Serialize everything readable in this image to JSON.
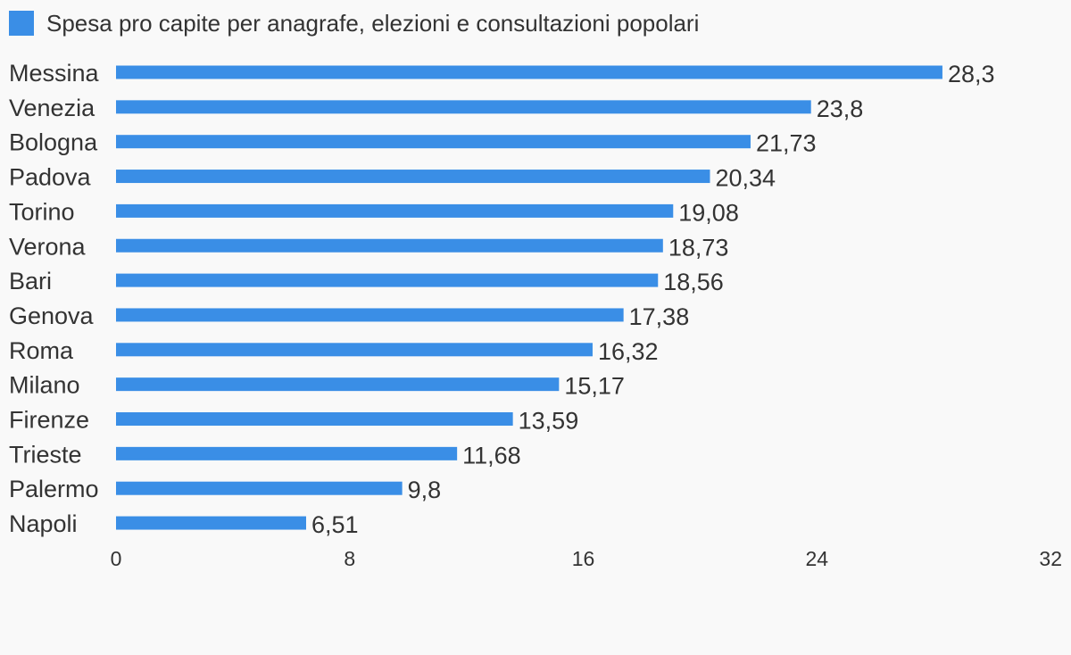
{
  "colors": {
    "background": "#f9f9f9",
    "bar": "#3a8ee6",
    "text": "#333333"
  },
  "chart_data": {
    "type": "bar",
    "orientation": "horizontal",
    "legend": [
      "Spesa pro capite per anagrafe, elezioni e consultazioni popolari"
    ],
    "legend_position": "top-left",
    "categories": [
      "Messina",
      "Venezia",
      "Bologna",
      "Padova",
      "Torino",
      "Verona",
      "Bari",
      "Genova",
      "Roma",
      "Milano",
      "Firenze",
      "Trieste",
      "Palermo",
      "Napoli"
    ],
    "series": [
      {
        "name": "Spesa pro capite per anagrafe, elezioni e consultazioni popolari",
        "values": [
          28.3,
          23.8,
          21.73,
          20.34,
          19.08,
          18.73,
          18.56,
          17.38,
          16.32,
          15.17,
          13.59,
          11.68,
          9.8,
          6.51
        ],
        "value_labels": [
          "28,3",
          "23,8",
          "21,73",
          "20,34",
          "19,08",
          "18,73",
          "18,56",
          "17,38",
          "16,32",
          "15,17",
          "13,59",
          "11,68",
          "9,8",
          "6,51"
        ]
      }
    ],
    "xlim": [
      0,
      32
    ],
    "xticks": [
      0,
      8,
      16,
      24,
      32
    ],
    "xtick_labels": [
      "0",
      "8",
      "16",
      "24",
      "32"
    ],
    "grid": false,
    "title": "",
    "xlabel": "",
    "ylabel": ""
  }
}
